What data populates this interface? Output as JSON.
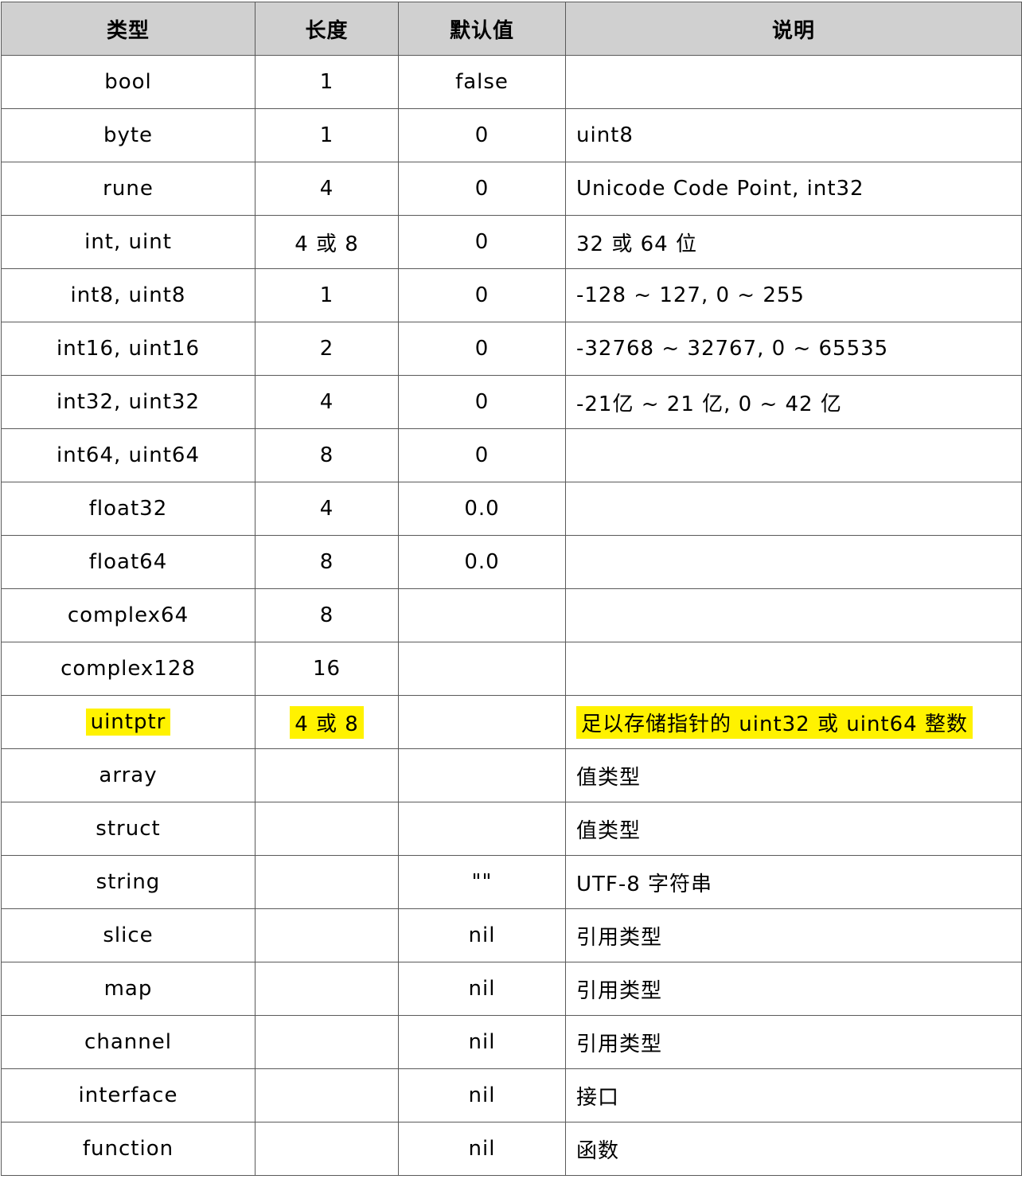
{
  "table": {
    "headers": [
      "类型",
      "长度",
      "默认值",
      "说明"
    ],
    "rows": [
      {
        "type": "bool",
        "length": "1",
        "default": "false",
        "desc": "",
        "highlight": false
      },
      {
        "type": "byte",
        "length": "1",
        "default": "0",
        "desc": "uint8",
        "highlight": false
      },
      {
        "type": "rune",
        "length": "4",
        "default": "0",
        "desc": "Unicode Code Point, int32",
        "highlight": false
      },
      {
        "type": "int, uint",
        "length": "4 或 8",
        "default": "0",
        "desc": "32 或 64 位",
        "highlight": false
      },
      {
        "type": "int8, uint8",
        "length": "1",
        "default": "0",
        "desc": "-128 ~ 127, 0 ~ 255",
        "highlight": false
      },
      {
        "type": "int16, uint16",
        "length": "2",
        "default": "0",
        "desc": "-32768 ~ 32767, 0 ~ 65535",
        "highlight": false
      },
      {
        "type": "int32, uint32",
        "length": "4",
        "default": "0",
        "desc": "-21亿 ~ 21 亿, 0 ~ 42 亿",
        "highlight": false
      },
      {
        "type": "int64, uint64",
        "length": "8",
        "default": "0",
        "desc": "",
        "highlight": false
      },
      {
        "type": "float32",
        "length": "4",
        "default": "0.0",
        "desc": "",
        "highlight": false
      },
      {
        "type": "float64",
        "length": "8",
        "default": "0.0",
        "desc": "",
        "highlight": false
      },
      {
        "type": "complex64",
        "length": "8",
        "default": "",
        "desc": "",
        "highlight": false
      },
      {
        "type": "complex128",
        "length": "16",
        "default": "",
        "desc": "",
        "highlight": false
      },
      {
        "type": "uintptr",
        "length": "4 或 8",
        "default": "",
        "desc": "足以存储指针的 uint32 或 uint64 整数",
        "highlight": true
      },
      {
        "type": "array",
        "length": "",
        "default": "",
        "desc": "值类型",
        "highlight": false
      },
      {
        "type": "struct",
        "length": "",
        "default": "",
        "desc": "值类型",
        "highlight": false
      },
      {
        "type": "string",
        "length": "",
        "default": "\"\"",
        "desc": "UTF-8 字符串",
        "highlight": false
      },
      {
        "type": "slice",
        "length": "",
        "default": "nil",
        "desc": "引用类型",
        "highlight": false
      },
      {
        "type": "map",
        "length": "",
        "default": "nil",
        "desc": "引用类型",
        "highlight": false
      },
      {
        "type": "channel",
        "length": "",
        "default": "nil",
        "desc": "引用类型",
        "highlight": false
      },
      {
        "type": "interface",
        "length": "",
        "default": "nil",
        "desc": "接口",
        "highlight": false
      },
      {
        "type": "function",
        "length": "",
        "default": "nil",
        "desc": "函数",
        "highlight": false
      }
    ]
  },
  "colors": {
    "header_bg": "#d0d0d0",
    "highlight": "#fff200",
    "border": "#5a5a5a"
  }
}
